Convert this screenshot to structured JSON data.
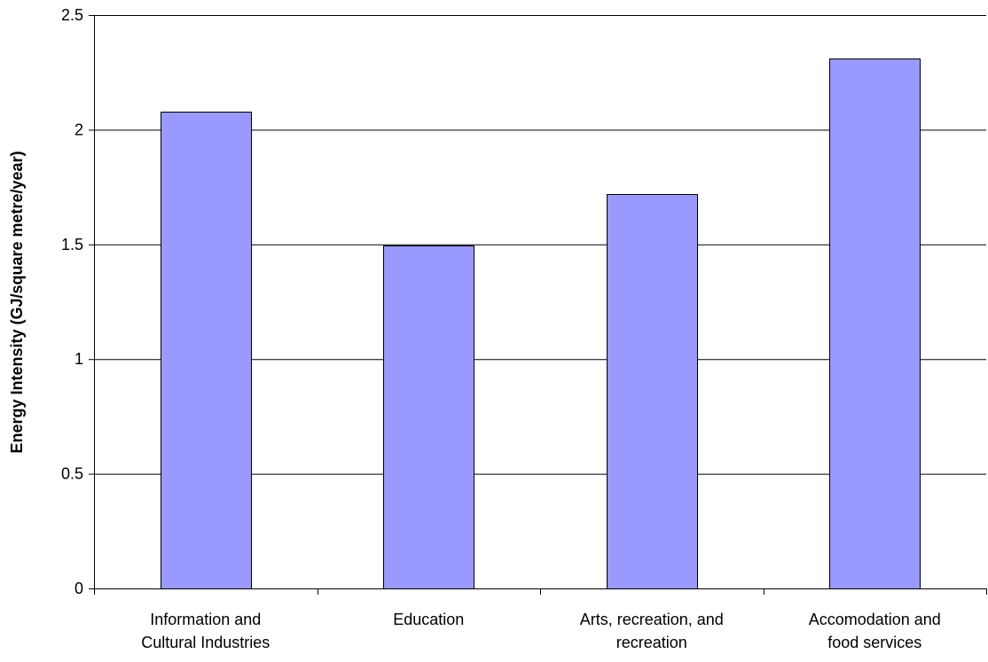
{
  "chart_data": {
    "type": "bar",
    "categories": [
      [
        "Information and",
        "Cultural Industries"
      ],
      [
        "Education"
      ],
      [
        "Arts, recreation, and",
        "recreation"
      ],
      [
        "Accomodation and",
        "food services"
      ]
    ],
    "values": [
      2.08,
      1.495,
      1.72,
      2.31
    ],
    "ylabel": "Energy Intensity (GJ/square metre/year)",
    "xlabel": "",
    "ylim": [
      0,
      2.5
    ],
    "yticks": [
      0,
      0.5,
      1,
      1.5,
      2,
      2.5
    ],
    "ytick_labels": [
      "0",
      "0.5",
      "1",
      "1.5",
      "2",
      "2.5"
    ],
    "grid": true,
    "legend": "none",
    "colors": {
      "bar_fill": "#9999ff",
      "bar_stroke": "#000000",
      "grid": "#000000",
      "axis": "#000000"
    }
  }
}
